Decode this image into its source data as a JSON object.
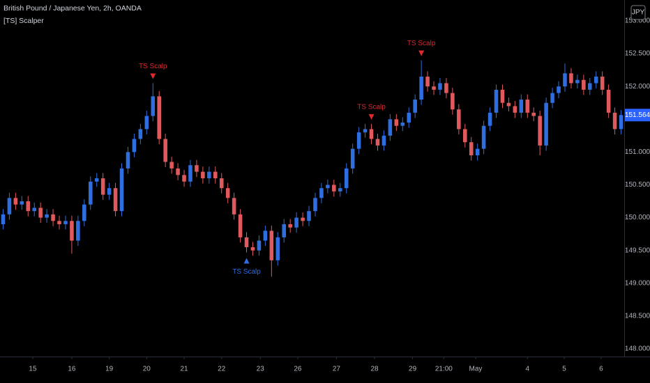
{
  "chart_data": {
    "type": "candlestick",
    "title": "British Pound / Japanese Yen, 2h, OANDA",
    "indicator": "[TS] Scalper",
    "currency": "JPY",
    "up_color": "#2f6ee0",
    "down_color": "#e05a5d",
    "ylim": [
      147.883,
      153.318
    ],
    "yticks": [
      {
        "value": 148,
        "label": "148.000"
      },
      {
        "value": 148.5,
        "label": "148.500"
      },
      {
        "value": 149,
        "label": "149.000"
      },
      {
        "value": 149.5,
        "label": "149.500"
      },
      {
        "value": 150,
        "label": "150.000"
      },
      {
        "value": 150.5,
        "label": "150.500"
      },
      {
        "value": 151,
        "label": "151.000"
      },
      {
        "value": 151.5,
        "label": "151.500"
      },
      {
        "value": 152,
        "label": "152.000"
      },
      {
        "value": 152.5,
        "label": "152.500"
      },
      {
        "value": 153,
        "label": "153.000"
      }
    ],
    "xlim": [
      -0.5,
      99.5
    ],
    "xticks": [
      {
        "value": 4.75,
        "label": "15"
      },
      {
        "value": 11,
        "label": "16"
      },
      {
        "value": 17,
        "label": "19"
      },
      {
        "value": 23,
        "label": "20"
      },
      {
        "value": 29,
        "label": "21"
      },
      {
        "value": 35,
        "label": "22"
      },
      {
        "value": 41.2,
        "label": "23"
      },
      {
        "value": 47.2,
        "label": "26"
      },
      {
        "value": 53.4,
        "label": "27"
      },
      {
        "value": 59.5,
        "label": "28"
      },
      {
        "value": 65.6,
        "label": "29"
      },
      {
        "value": 70.6,
        "label": "21:00"
      },
      {
        "value": 75.7,
        "label": "May"
      },
      {
        "value": 84,
        "label": "4"
      },
      {
        "value": 89.9,
        "label": "5"
      },
      {
        "value": 95.8,
        "label": "6"
      }
    ],
    "last_price": {
      "value": 151.564,
      "label": "151.564"
    },
    "open": [
      149.9,
      150.05,
      150.3,
      150.2,
      150.25,
      150.1,
      150.15,
      150.0,
      150.05,
      149.95,
      149.9,
      149.95,
      149.65,
      149.95,
      150.2,
      150.55,
      150.6,
      150.35,
      150.45,
      150.1,
      150.75,
      151.0,
      151.2,
      151.35,
      151.55,
      151.85,
      151.2,
      150.85,
      150.75,
      150.65,
      150.55,
      150.8,
      150.7,
      150.6,
      150.7,
      150.6,
      150.45,
      150.3,
      150.05,
      149.7,
      149.55,
      149.5,
      149.65,
      149.8,
      149.35,
      149.7,
      149.9,
      149.85,
      150.0,
      149.95,
      150.1,
      150.3,
      150.45,
      150.5,
      150.4,
      150.45,
      150.75,
      151.05,
      151.3,
      151.35,
      151.2,
      151.1,
      151.25,
      151.5,
      151.4,
      151.45,
      151.6,
      151.8,
      152.15,
      152.0,
      151.95,
      152.05,
      151.9,
      151.65,
      151.35,
      151.15,
      150.95,
      151.05,
      151.4,
      151.6,
      151.95,
      151.75,
      151.7,
      151.6,
      151.8,
      151.6,
      151.55,
      151.1,
      151.75,
      151.9,
      152.0,
      152.2,
      152.05,
      152.1,
      151.95,
      152.05,
      152.15,
      151.95,
      151.6,
      151.35
    ],
    "high": [
      150.13,
      150.38,
      150.38,
      150.33,
      150.33,
      150.23,
      150.23,
      150.13,
      150.13,
      150.03,
      150.03,
      150.03,
      150.03,
      150.28,
      150.63,
      150.68,
      150.68,
      150.53,
      150.53,
      150.83,
      151.08,
      151.28,
      151.43,
      151.63,
      152.05,
      151.93,
      151.28,
      150.93,
      150.83,
      150.73,
      150.88,
      150.88,
      150.78,
      150.78,
      150.78,
      150.68,
      150.53,
      150.38,
      150.13,
      149.78,
      149.63,
      149.73,
      149.88,
      149.88,
      149.78,
      149.98,
      149.98,
      150.08,
      150.08,
      150.18,
      150.38,
      150.53,
      150.58,
      150.58,
      150.53,
      150.83,
      151.13,
      151.38,
      151.43,
      151.43,
      151.28,
      151.33,
      151.58,
      151.58,
      151.53,
      151.68,
      151.88,
      152.4,
      152.23,
      152.08,
      152.13,
      152.13,
      151.98,
      151.73,
      151.43,
      151.23,
      151.13,
      151.48,
      151.68,
      152.03,
      152.03,
      151.83,
      151.78,
      151.88,
      151.88,
      151.68,
      151.63,
      151.83,
      151.98,
      152.08,
      152.35,
      152.28,
      152.18,
      152.18,
      152.13,
      152.23,
      152.23,
      152.03,
      151.68,
      151.64
    ],
    "low": [
      149.82,
      149.97,
      150.12,
      150.12,
      150.02,
      150.02,
      149.92,
      149.92,
      149.87,
      149.82,
      149.82,
      149.45,
      149.57,
      149.87,
      150.12,
      150.47,
      150.27,
      150.27,
      150.02,
      150.02,
      150.67,
      150.92,
      151.12,
      151.27,
      151.47,
      151.12,
      150.77,
      150.67,
      150.57,
      150.47,
      150.47,
      150.62,
      150.52,
      150.52,
      150.52,
      150.37,
      150.22,
      149.97,
      149.62,
      149.47,
      149.42,
      149.42,
      149.57,
      149.1,
      149.27,
      149.62,
      149.77,
      149.77,
      149.87,
      149.87,
      150.02,
      150.22,
      150.37,
      150.32,
      150.32,
      150.37,
      150.67,
      150.97,
      151.22,
      151.12,
      151.02,
      151.02,
      151.17,
      151.32,
      151.32,
      151.37,
      151.52,
      151.72,
      151.92,
      151.87,
      151.87,
      151.82,
      151.57,
      151.27,
      151.07,
      150.87,
      150.87,
      150.97,
      151.32,
      151.52,
      151.67,
      151.62,
      151.52,
      151.52,
      151.52,
      151.47,
      150.95,
      151.02,
      151.67,
      151.82,
      151.92,
      151.97,
      151.97,
      151.87,
      151.87,
      151.97,
      151.87,
      151.52,
      151.27,
      151.27
    ],
    "close": [
      150.05,
      150.3,
      150.2,
      150.25,
      150.1,
      150.15,
      150.0,
      150.05,
      149.95,
      149.9,
      149.95,
      149.65,
      149.95,
      150.2,
      150.55,
      150.6,
      150.35,
      150.45,
      150.1,
      150.75,
      151.0,
      151.2,
      151.35,
      151.55,
      151.85,
      151.2,
      150.85,
      150.75,
      150.65,
      150.55,
      150.8,
      150.7,
      150.6,
      150.7,
      150.6,
      150.45,
      150.3,
      150.05,
      149.7,
      149.55,
      149.5,
      149.65,
      149.8,
      149.35,
      149.7,
      149.9,
      149.85,
      150.0,
      149.95,
      150.1,
      150.3,
      150.45,
      150.5,
      150.4,
      150.45,
      150.75,
      151.05,
      151.3,
      151.35,
      151.2,
      151.1,
      151.25,
      151.5,
      151.4,
      151.45,
      151.6,
      151.8,
      152.15,
      152.0,
      151.95,
      152.05,
      151.9,
      151.65,
      151.35,
      151.15,
      150.95,
      151.05,
      151.4,
      151.6,
      151.95,
      151.75,
      151.7,
      151.6,
      151.8,
      151.6,
      151.55,
      151.1,
      151.75,
      151.9,
      152.0,
      152.2,
      152.05,
      152.1,
      151.95,
      152.05,
      152.15,
      151.95,
      151.6,
      151.35,
      151.564
    ],
    "signals": [
      {
        "text": "TS Scalp",
        "index": 24,
        "side": "sell"
      },
      {
        "text": "TS Scalp",
        "index": 39,
        "side": "buy"
      },
      {
        "text": "TS Scalp",
        "index": 59,
        "side": "sell"
      },
      {
        "text": "TS Scalp",
        "index": 67,
        "side": "sell"
      }
    ]
  }
}
